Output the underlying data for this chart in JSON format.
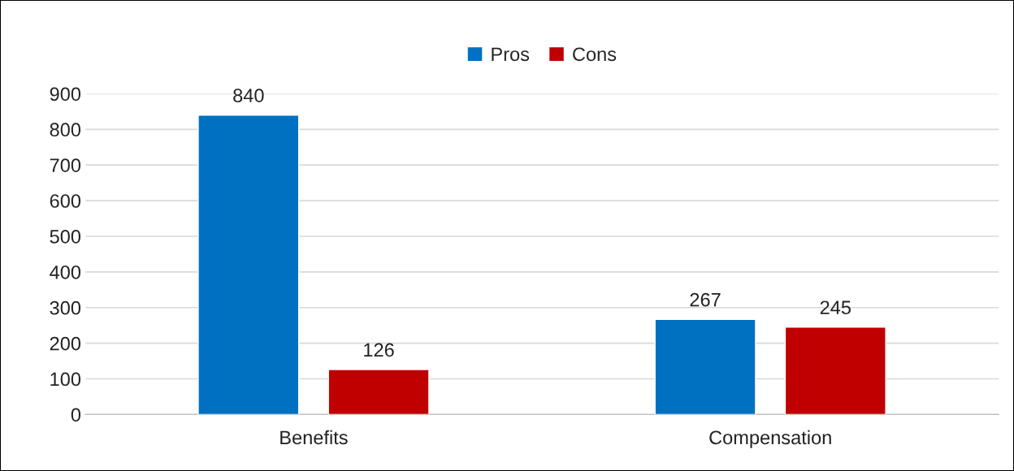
{
  "chart_data": {
    "type": "bar",
    "categories": [
      "Benefits",
      "Compensation"
    ],
    "series": [
      {
        "name": "Pros",
        "color": "#0070c0",
        "values": [
          840,
          267
        ]
      },
      {
        "name": "Cons",
        "color": "#c00000",
        "values": [
          126,
          245
        ]
      }
    ],
    "ylim": [
      0,
      900
    ],
    "yticks": [
      0,
      100,
      200,
      300,
      400,
      500,
      600,
      700,
      800,
      900
    ],
    "grid": "y",
    "legend": "top",
    "data_labels": true
  }
}
